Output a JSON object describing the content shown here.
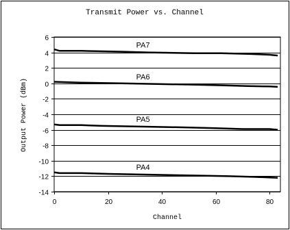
{
  "chart_data": {
    "type": "line",
    "title": "Transmit Power vs. Channel",
    "xlabel": "Channel",
    "ylabel": "Output Power (dBm)",
    "xlim": [
      0,
      84
    ],
    "ylim": [
      -14,
      6
    ],
    "xticks": [
      0,
      20,
      40,
      60,
      80
    ],
    "xtick_labels": [
      "0",
      "20",
      "40",
      "60",
      "80"
    ],
    "yticks": [
      6,
      4,
      2,
      0,
      -2,
      -4,
      -6,
      -8,
      -10,
      -12,
      -14
    ],
    "ytick_labels": [
      "6",
      "4",
      "2",
      "0",
      "-2",
      "-4",
      "-6",
      "-8",
      "-10",
      "-12",
      "-14"
    ],
    "grid": "horizontal",
    "line_color": "#000000",
    "series": [
      {
        "name": "PA7",
        "x": [
          0,
          2,
          10,
          25,
          35,
          52,
          62,
          73,
          80,
          83
        ],
        "y": [
          4.4,
          4.2,
          4.2,
          4.1,
          4.0,
          3.9,
          3.9,
          3.8,
          3.7,
          3.6
        ]
      },
      {
        "name": "PA6",
        "x": [
          0,
          10,
          25,
          40,
          50,
          62,
          72,
          80,
          83
        ],
        "y": [
          0.2,
          0.1,
          0.0,
          -0.1,
          -0.15,
          -0.25,
          -0.35,
          -0.4,
          -0.45
        ]
      },
      {
        "name": "PA5",
        "x": [
          0,
          2,
          10,
          18,
          35,
          50,
          60,
          70,
          80,
          83
        ],
        "y": [
          -5.3,
          -5.4,
          -5.4,
          -5.5,
          -5.6,
          -5.7,
          -5.8,
          -5.9,
          -5.9,
          -6.0
        ]
      },
      {
        "name": "PA4",
        "x": [
          0,
          2,
          10,
          20,
          35,
          50,
          65,
          75,
          83
        ],
        "y": [
          -11.5,
          -11.6,
          -11.6,
          -11.7,
          -11.8,
          -11.9,
          -12.0,
          -12.1,
          -12.2
        ]
      }
    ]
  }
}
